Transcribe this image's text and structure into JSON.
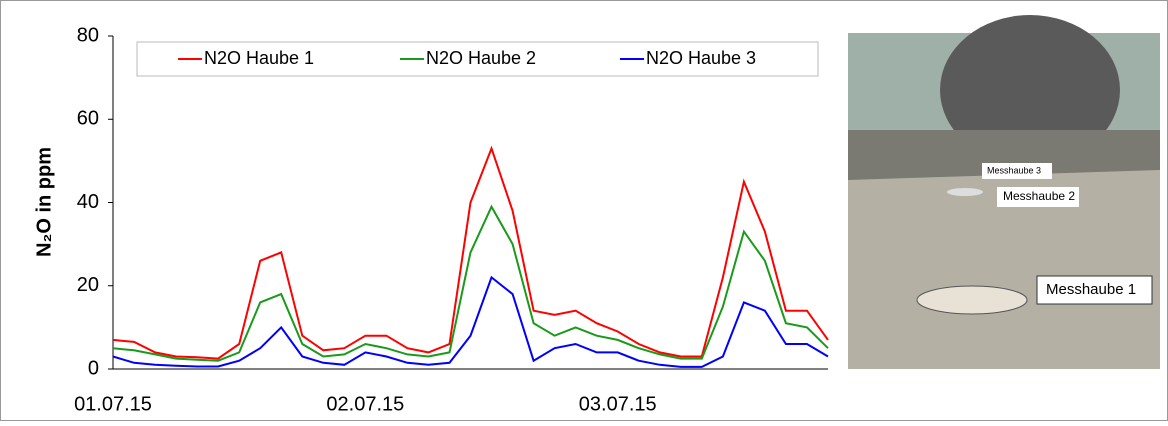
{
  "chart_data": {
    "type": "line",
    "ylabel": "N₂O in ppm",
    "categories": [
      "01.07.15",
      null,
      null,
      null,
      null,
      null,
      null,
      null,
      null,
      null,
      null,
      null,
      "02.07.15",
      null,
      null,
      null,
      null,
      null,
      null,
      null,
      null,
      null,
      null,
      null,
      "03.07.15",
      null,
      null,
      null,
      null,
      null,
      null,
      null,
      null,
      null,
      null
    ],
    "series": [
      {
        "name": "N2O Haube 1",
        "color": "#ff0000",
        "values": [
          7,
          6.5,
          4,
          3,
          2.8,
          2.5,
          6,
          26,
          28,
          8,
          4.5,
          5,
          8,
          8,
          5,
          4,
          6,
          40,
          53,
          38,
          14,
          13,
          14,
          11,
          9,
          6,
          4,
          3,
          3,
          22,
          45,
          33,
          14,
          14,
          7
        ]
      },
      {
        "name": "N2O Haube 2",
        "color": "#1a9a1a",
        "values": [
          5,
          4.5,
          3.5,
          2.5,
          2.2,
          2,
          4,
          16,
          18,
          6,
          3,
          3.5,
          6,
          5,
          3.5,
          3,
          4,
          28,
          39,
          30,
          11,
          8,
          10,
          8,
          7,
          5,
          3.5,
          2.5,
          2.5,
          15,
          33,
          26,
          11,
          10,
          5
        ]
      },
      {
        "name": "N2O Haube 3",
        "color": "#0000ff",
        "values": [
          3,
          1.5,
          1,
          0.8,
          0.6,
          0.6,
          2,
          5,
          10,
          3,
          1.5,
          1,
          4,
          3,
          1.5,
          1,
          1.5,
          8,
          22,
          18,
          2,
          5,
          6,
          4,
          4,
          2,
          1,
          0.5,
          0.5,
          3,
          16,
          14,
          6,
          6,
          3
        ]
      }
    ],
    "ylim": [
      0,
      80
    ],
    "yticks": [
      0,
      20,
      40,
      60,
      80
    ],
    "grid": false,
    "legend": "top"
  },
  "photo": {
    "labels": [
      "Messhaube 3",
      "Messhaube 2",
      "Messhaube 1"
    ]
  }
}
